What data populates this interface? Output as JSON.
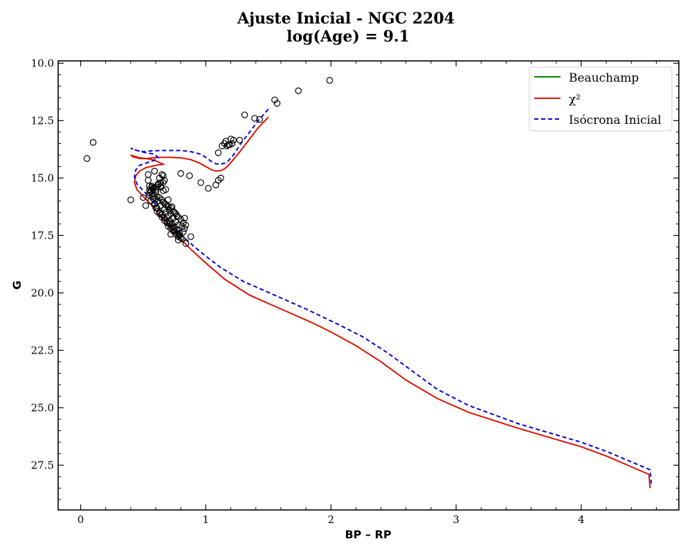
{
  "chart_data": {
    "type": "scatter",
    "title": "Ajuste Inicial - NGC 2204",
    "subtitle": "log(Age) = 9.1",
    "xlabel": "BP – RP",
    "ylabel": "G",
    "xlim": [
      -0.18,
      4.78
    ],
    "ylim": [
      29.45,
      9.9
    ],
    "y_inverted": true,
    "x_ticks": [
      0,
      1,
      2,
      3,
      4
    ],
    "x_tick_labels": [
      "0",
      "1",
      "2",
      "3",
      "4"
    ],
    "y_ticks": [
      10.0,
      12.5,
      15.0,
      17.5,
      20.0,
      22.5,
      25.0,
      27.5
    ],
    "y_tick_labels": [
      "10.0",
      "12.5",
      "15.0",
      "17.5",
      "20.0",
      "22.5",
      "25.0",
      "27.5"
    ],
    "grid": false,
    "legend_position": "top-right",
    "legend": [
      "Beauchamp",
      "χ²",
      "Isócrona Inicial"
    ],
    "colors": {
      "beauchamp": "#008000",
      "chi2": "#dd1100",
      "initial": "#0000dd",
      "points": "#000000"
    },
    "series": [
      {
        "name": "Beauchamp",
        "type": "line",
        "style": "solid",
        "x": [],
        "y": []
      },
      {
        "name": "χ²",
        "type": "line",
        "style": "solid",
        "x": [
          1.5,
          1.42,
          1.35,
          1.28,
          1.22,
          1.18,
          1.15,
          1.12,
          1.08,
          1.05,
          1.0,
          0.95,
          0.88,
          0.8,
          0.72,
          0.65,
          0.58,
          0.52,
          0.47,
          0.42,
          0.4,
          0.43,
          0.47,
          0.52,
          0.57,
          0.6,
          0.62,
          0.66,
          0.6,
          0.52,
          0.47,
          0.44,
          0.43,
          0.45,
          0.5,
          0.57,
          0.64,
          0.72,
          0.8,
          0.88,
          1.0,
          1.15,
          1.35,
          1.6,
          1.85,
          2.0,
          2.2,
          2.4,
          2.6,
          2.85,
          3.1,
          3.5,
          4.0,
          4.2,
          4.54,
          4.55
        ],
        "y": [
          12.35,
          12.8,
          13.3,
          13.8,
          14.2,
          14.45,
          14.6,
          14.68,
          14.7,
          14.65,
          14.5,
          14.35,
          14.2,
          14.12,
          14.1,
          14.1,
          14.12,
          14.15,
          14.15,
          14.08,
          14.0,
          14.05,
          14.12,
          14.15,
          14.2,
          14.25,
          14.3,
          14.4,
          14.45,
          14.55,
          14.7,
          14.9,
          15.2,
          15.5,
          15.8,
          16.2,
          16.65,
          17.15,
          17.65,
          18.1,
          18.7,
          19.4,
          20.1,
          20.7,
          21.3,
          21.7,
          22.3,
          23.0,
          23.8,
          24.6,
          25.2,
          25.9,
          26.7,
          27.1,
          27.9,
          28.5
        ]
      },
      {
        "name": "Isócrona Inicial",
        "type": "line",
        "style": "dashed",
        "x": [
          1.5,
          1.42,
          1.35,
          1.28,
          1.22,
          1.18,
          1.15,
          1.12,
          1.08,
          1.05,
          1.0,
          0.95,
          0.88,
          0.8,
          0.72,
          0.64,
          0.56,
          0.5,
          0.45,
          0.42,
          0.4,
          0.45,
          0.52,
          0.58,
          0.62,
          0.58,
          0.52,
          0.47,
          0.44,
          0.43,
          0.45,
          0.5,
          0.57,
          0.64,
          0.72,
          0.8,
          0.9,
          1.0,
          1.12,
          1.3,
          1.55,
          1.8,
          2.05,
          2.25,
          2.45,
          2.65,
          2.85,
          3.1,
          3.5,
          4.0,
          4.2,
          4.55,
          4.56
        ],
        "y": [
          12.0,
          12.5,
          13.0,
          13.5,
          14.0,
          14.25,
          14.35,
          14.4,
          14.38,
          14.3,
          14.1,
          13.95,
          13.85,
          13.8,
          13.8,
          13.8,
          13.82,
          13.85,
          13.8,
          13.75,
          13.7,
          13.8,
          13.9,
          13.95,
          14.1,
          14.25,
          14.35,
          14.45,
          14.65,
          14.95,
          15.25,
          15.55,
          15.95,
          16.45,
          16.95,
          17.45,
          17.95,
          18.4,
          18.9,
          19.5,
          20.1,
          20.7,
          21.35,
          21.9,
          22.6,
          23.4,
          24.2,
          24.9,
          25.7,
          26.5,
          26.9,
          27.7,
          28.3
        ]
      },
      {
        "name": "",
        "type": "scatter",
        "x": [
          1.99,
          1.74,
          1.55,
          1.57,
          1.31,
          1.39,
          1.43,
          0.1,
          0.05,
          1.2,
          1.22,
          1.18,
          1.27,
          1.15,
          1.19,
          1.17,
          1.21,
          1.13,
          1.1,
          1.16,
          0.8,
          0.87,
          0.96,
          1.02,
          1.08,
          1.1,
          1.12,
          0.4,
          0.5,
          0.52,
          0.54,
          0.54,
          0.55,
          0.56,
          0.57,
          0.57,
          0.58,
          0.59,
          0.59,
          0.6,
          0.6,
          0.61,
          0.61,
          0.62,
          0.62,
          0.63,
          0.63,
          0.64,
          0.64,
          0.65,
          0.65,
          0.66,
          0.66,
          0.67,
          0.67,
          0.67,
          0.68,
          0.69,
          0.69,
          0.7,
          0.7,
          0.71,
          0.71,
          0.72,
          0.72,
          0.73,
          0.73,
          0.74,
          0.74,
          0.75,
          0.75,
          0.76,
          0.76,
          0.77,
          0.77,
          0.78,
          0.78,
          0.79,
          0.8,
          0.81,
          0.82,
          0.83,
          0.84,
          0.88,
          0.55,
          0.56,
          0.57,
          0.58,
          0.6,
          0.62,
          0.64,
          0.66,
          0.68,
          0.55,
          0.58,
          0.6,
          0.63,
          0.65,
          0.67,
          0.68,
          0.7,
          0.72,
          0.74,
          0.76,
          0.78,
          0.8,
          0.82,
          0.84,
          0.56,
          0.59,
          0.61,
          0.63,
          0.65,
          0.67,
          0.69,
          0.71,
          0.73,
          0.75,
          0.77,
          0.79,
          0.81,
          0.55,
          0.58,
          0.6,
          0.62,
          0.64,
          0.66,
          0.7,
          0.72,
          0.78,
          0.83
        ],
        "y": [
          10.75,
          11.2,
          11.6,
          11.75,
          12.25,
          12.4,
          12.45,
          13.45,
          14.15,
          13.3,
          13.35,
          13.55,
          13.35,
          13.5,
          13.55,
          13.6,
          13.5,
          13.6,
          13.9,
          13.4,
          14.8,
          14.9,
          15.2,
          15.45,
          15.3,
          15.1,
          15.0,
          15.95,
          15.85,
          16.2,
          14.85,
          15.1,
          15.35,
          15.6,
          15.4,
          15.7,
          15.9,
          14.7,
          16.1,
          15.5,
          16.3,
          15.8,
          16.45,
          15.25,
          16.0,
          15.0,
          16.55,
          15.35,
          16.2,
          14.85,
          16.7,
          15.2,
          16.05,
          16.35,
          16.85,
          15.1,
          16.5,
          16.95,
          16.2,
          16.65,
          17.1,
          16.4,
          16.85,
          17.2,
          16.55,
          17.0,
          16.25,
          17.3,
          16.75,
          17.15,
          16.5,
          17.45,
          16.9,
          17.25,
          16.65,
          17.55,
          17.05,
          17.4,
          17.6,
          17.1,
          17.35,
          16.75,
          17.85,
          17.55,
          15.5,
          15.55,
          15.35,
          15.45,
          15.6,
          15.3,
          15.4,
          15.55,
          15.5,
          15.65,
          15.8,
          15.9,
          15.85,
          15.95,
          16.1,
          16.15,
          16.25,
          16.3,
          16.45,
          16.55,
          16.7,
          16.8,
          16.95,
          17.05,
          16.0,
          16.15,
          16.3,
          16.5,
          16.6,
          16.75,
          16.9,
          17.0,
          17.15,
          17.3,
          17.4,
          17.5,
          17.65,
          15.75,
          15.5,
          15.4,
          15.3,
          15.2,
          14.9,
          15.95,
          17.45,
          17.7,
          17.2
        ]
      }
    ]
  }
}
